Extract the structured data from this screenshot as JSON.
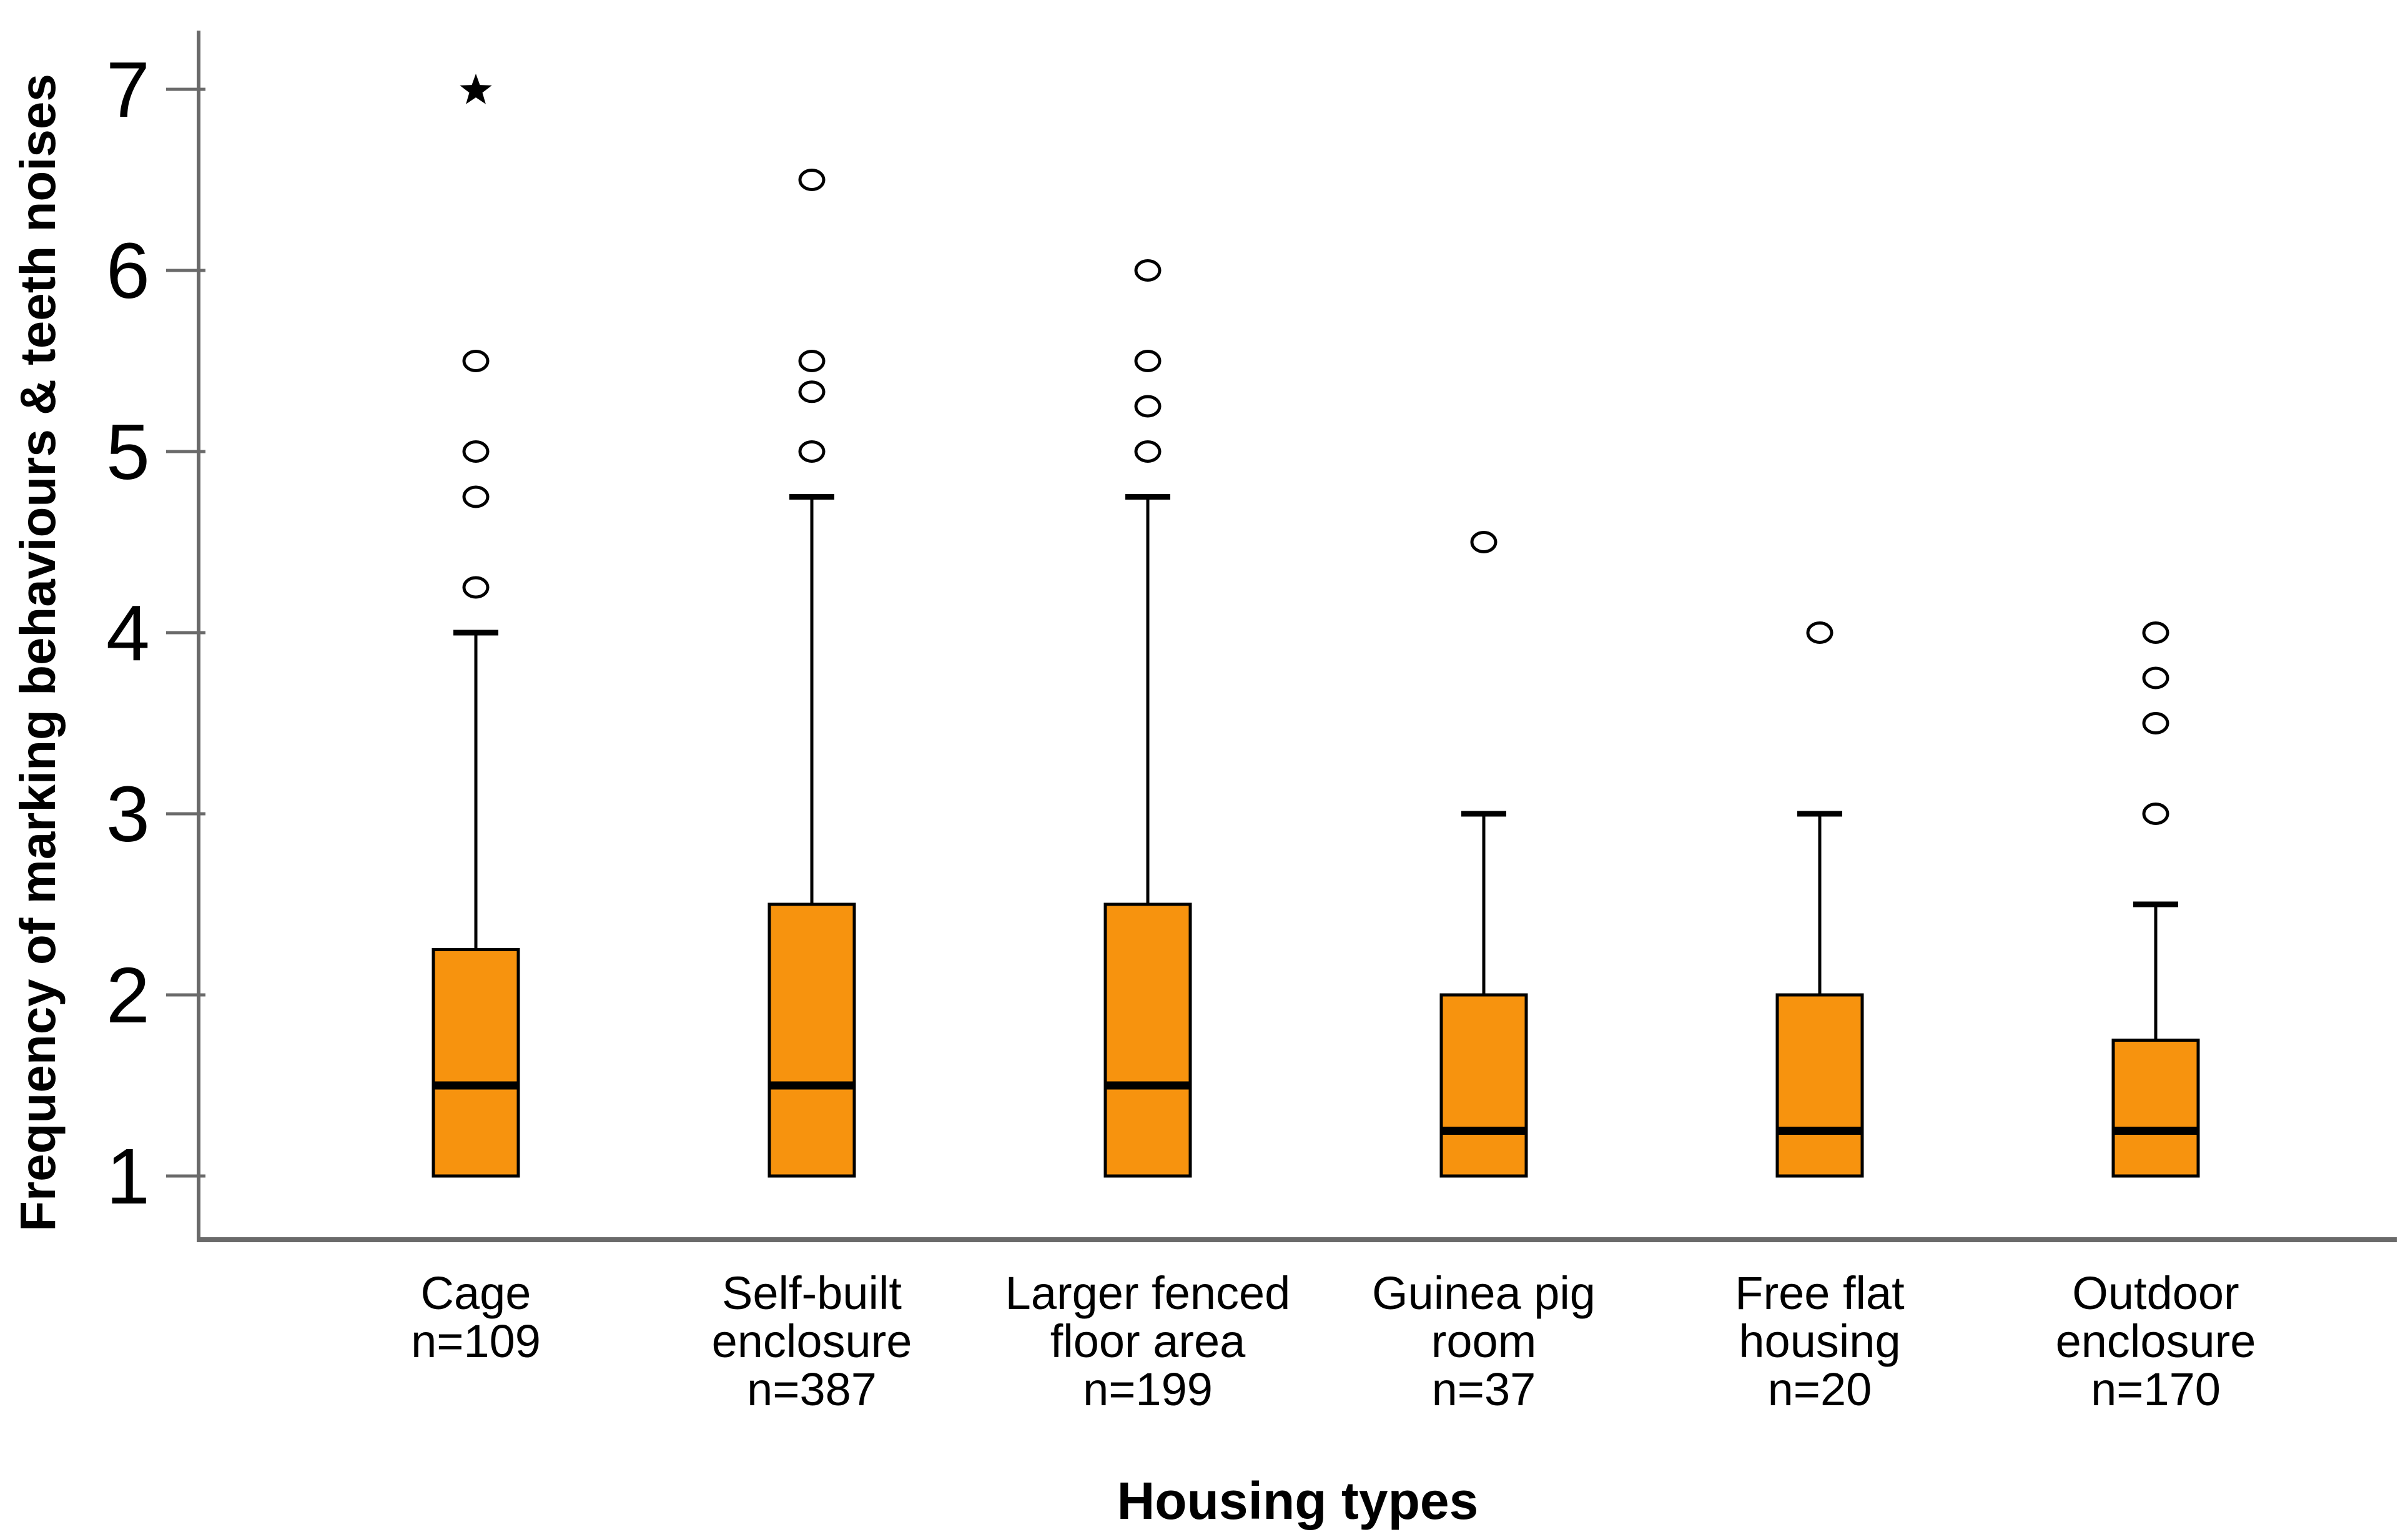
{
  "chart_data": {
    "type": "boxplot",
    "title": "",
    "xlabel": "Housing types",
    "ylabel": "Frequency of marking behaviours & teeth noises",
    "ylim": [
      0.65,
      7.35
    ],
    "yticks": [
      1,
      2,
      3,
      4,
      5,
      6,
      7
    ],
    "grid": false,
    "legend": "none",
    "colors": {
      "box_fill": "#F7930E",
      "box_border": "#000000",
      "median": "#000000",
      "whisker": "#000000",
      "outlier": "#000000",
      "axis_line": "#6A6A6A",
      "text": "#000000",
      "background": "#FFFFFF"
    },
    "categories": [
      "Cage",
      "Self-built enclosure",
      "Larger fenced floor area",
      "Guinea pig room",
      "Free flat housing",
      "Outdoor enclosure"
    ],
    "series": [
      {
        "label": "Cage",
        "n_text": "n=109",
        "category_lines": [
          "Cage",
          "n=109"
        ],
        "q1": 1.0,
        "median": 1.5,
        "q3": 2.25,
        "whisker_low": 1.0,
        "whisker_high": 4.0,
        "outliers": [
          4.25,
          4.75,
          5.0,
          5.5
        ],
        "extreme_outliers": [
          7.0
        ]
      },
      {
        "label": "Self-built enclosure",
        "n_text": "n=387",
        "category_lines": [
          "Self-built",
          "enclosure",
          "n=387"
        ],
        "q1": 1.0,
        "median": 1.5,
        "q3": 2.5,
        "whisker_low": 1.0,
        "whisker_high": 4.75,
        "outliers": [
          5.0,
          5.33,
          5.5,
          6.5
        ],
        "extreme_outliers": []
      },
      {
        "label": "Larger fenced floor area",
        "n_text": "n=199",
        "category_lines": [
          "Larger fenced",
          "floor area",
          "n=199"
        ],
        "q1": 1.0,
        "median": 1.5,
        "q3": 2.5,
        "whisker_low": 1.0,
        "whisker_high": 4.75,
        "outliers": [
          5.0,
          5.25,
          5.5,
          6.0
        ],
        "extreme_outliers": []
      },
      {
        "label": "Guinea pig room",
        "n_text": "n=37",
        "category_lines": [
          "Guinea pig",
          "room",
          "n=37"
        ],
        "q1": 1.0,
        "median": 1.25,
        "q3": 2.0,
        "whisker_low": 1.0,
        "whisker_high": 3.0,
        "outliers": [
          4.5
        ],
        "extreme_outliers": []
      },
      {
        "label": "Free flat housing",
        "n_text": "n=20",
        "category_lines": [
          "Free flat",
          "housing",
          "n=20"
        ],
        "q1": 1.0,
        "median": 1.25,
        "q3": 2.0,
        "whisker_low": 1.0,
        "whisker_high": 3.0,
        "outliers": [
          4.0
        ],
        "extreme_outliers": []
      },
      {
        "label": "Outdoor enclosure",
        "n_text": "n=170",
        "category_lines": [
          "Outdoor",
          "enclosure",
          "n=170"
        ],
        "q1": 1.0,
        "median": 1.25,
        "q3": 1.75,
        "whisker_low": 1.0,
        "whisker_high": 2.5,
        "outliers": [
          3.0,
          3.5,
          3.75,
          4.0
        ],
        "extreme_outliers": []
      }
    ]
  }
}
